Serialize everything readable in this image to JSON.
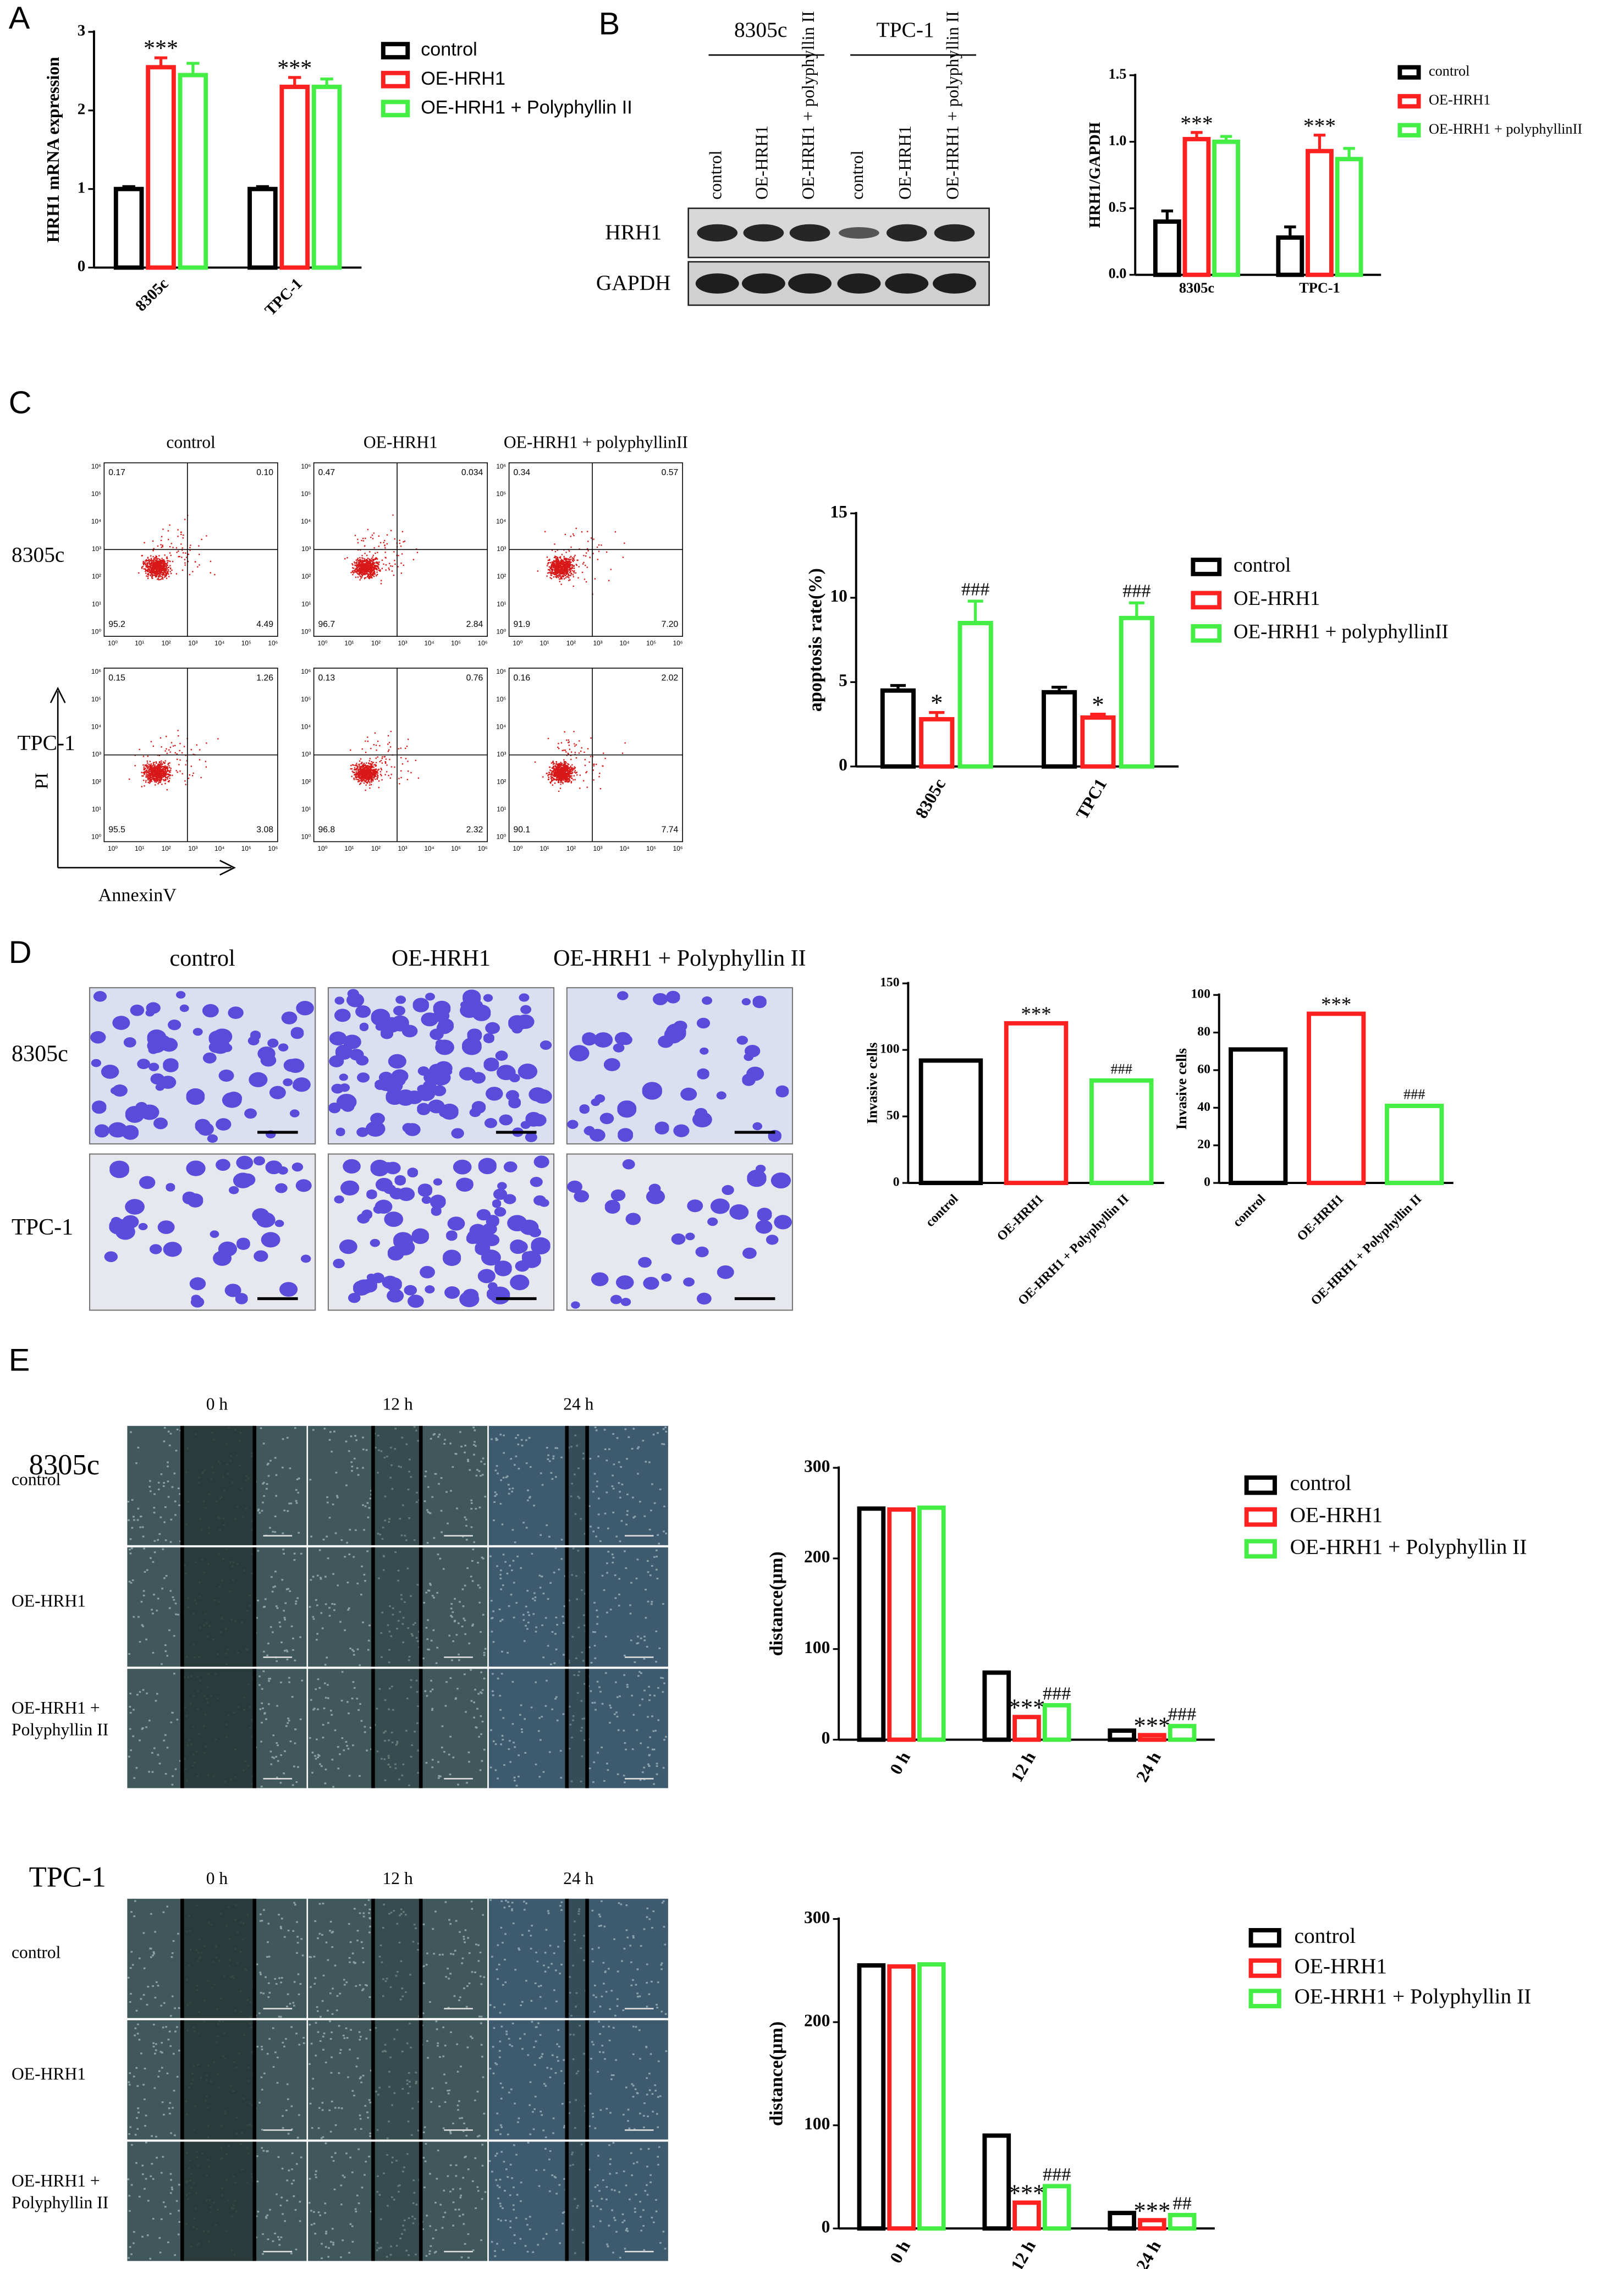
{
  "panels": [
    "A",
    "B",
    "C",
    "D",
    "E"
  ],
  "blot": {
    "cell_lines": [
      "8305c",
      "TPC-1"
    ],
    "lanes": [
      "control",
      "OE-HRH1",
      "OE-HRH1 + polyphyllin II",
      "control",
      "OE-HRH1",
      "OE-HRH1 + polyphyllin II"
    ],
    "proteins": [
      "HRH1",
      "GAPDH"
    ]
  },
  "flow": {
    "columns": [
      "control",
      "OE-HRH1",
      "OE-HRH1 + polyphyllinII"
    ],
    "rows": [
      "8305c",
      "TPC-1"
    ],
    "y_axis": "PI",
    "x_axis": "AnnexinV",
    "tick_labels": [
      "10⁰",
      "10¹",
      "10²",
      "10³",
      "10⁴",
      "10⁵",
      "10⁶"
    ],
    "quadrants": [
      [
        [
          "0.17",
          "0.10",
          "95.2",
          "4.49"
        ],
        [
          "0.47",
          "0.034",
          "96.7",
          "2.84"
        ],
        [
          "0.34",
          "0.57",
          "91.9",
          "7.20"
        ]
      ],
      [
        [
          "0.15",
          "1.26",
          "95.5",
          "3.08"
        ],
        [
          "0.13",
          "0.76",
          "96.8",
          "2.32"
        ],
        [
          "0.16",
          "2.02",
          "90.1",
          "7.74"
        ]
      ]
    ]
  },
  "invasion": {
    "columns": [
      "control",
      "OE-HRH1",
      "OE-HRH1 + Polyphyllin II"
    ],
    "rows": [
      "8305c",
      "TPC-1"
    ]
  },
  "wound": [
    {
      "cell_line": "8305c",
      "columns": [
        "0 h",
        "12 h",
        "24 h"
      ],
      "rows": [
        "control",
        "OE-HRH1",
        "OE-HRH1 + Polyphyllin II"
      ]
    },
    {
      "cell_line": "TPC-1",
      "columns": [
        "0 h",
        "12 h",
        "24 h"
      ],
      "rows": [
        "control",
        "OE-HRH1",
        "OE-HRH1 + Polyphyllin II"
      ]
    }
  ],
  "chart_data": [
    {
      "type": "bar",
      "ylabel": "HRH1 mRNA expression",
      "categories": [
        "8305c",
        "TPC-1"
      ],
      "series": [
        {
          "name": "control",
          "color": "#000000",
          "values": [
            1.0,
            1.0
          ],
          "errors": [
            0.03,
            0.03
          ],
          "significance": [
            null,
            null
          ]
        },
        {
          "name": "OE-HRH1",
          "color": "#ff2020",
          "values": [
            2.55,
            2.3
          ],
          "errors": [
            0.12,
            0.12
          ],
          "significance": [
            "***",
            "***"
          ]
        },
        {
          "name": "OE-HRH1 + Polyphyllin II",
          "color": "#44ee44",
          "values": [
            2.45,
            2.3
          ],
          "errors": [
            0.15,
            0.1
          ],
          "significance": [
            null,
            null
          ]
        }
      ],
      "ylim": [
        0,
        3
      ],
      "yticks": [
        0,
        1,
        2,
        3
      ]
    },
    {
      "type": "bar",
      "ylabel": "HRH1/GAPDH",
      "categories": [
        "8305c",
        "TPC-1"
      ],
      "series": [
        {
          "name": "control",
          "color": "#000000",
          "values": [
            0.4,
            0.28
          ],
          "errors": [
            0.08,
            0.08
          ],
          "significance": [
            null,
            null
          ]
        },
        {
          "name": "OE-HRH1",
          "color": "#ff2020",
          "values": [
            1.02,
            0.93
          ],
          "errors": [
            0.05,
            0.12
          ],
          "significance": [
            "***",
            "***"
          ]
        },
        {
          "name": "OE-HRH1 + polyphyllinII",
          "color": "#44ee44",
          "values": [
            1.0,
            0.87
          ],
          "errors": [
            0.04,
            0.08
          ],
          "significance": [
            null,
            null
          ]
        }
      ],
      "ylim": [
        0,
        1.5
      ],
      "yticks": [
        {
          "value": 0,
          "label": "0.0"
        },
        {
          "value": 0.5,
          "label": "0.5"
        },
        {
          "value": 1,
          "label": "1.0"
        },
        {
          "value": 1.5,
          "label": "1.5"
        }
      ]
    },
    {
      "type": "bar",
      "ylabel": "apoptosis rate(%)",
      "categories": [
        "8305c",
        "TPC1"
      ],
      "series": [
        {
          "name": "control",
          "color": "#000000",
          "values": [
            4.5,
            4.4
          ],
          "errors": [
            0.3,
            0.3
          ],
          "significance": [
            null,
            null
          ]
        },
        {
          "name": "OE-HRH1",
          "color": "#ff2020",
          "values": [
            2.8,
            2.9
          ],
          "errors": [
            0.4,
            0.2
          ],
          "significance": [
            "*",
            "*"
          ]
        },
        {
          "name": "OE-HRH1 + polyphyllinII",
          "color": "#44ee44",
          "values": [
            8.5,
            8.8
          ],
          "errors": [
            1.3,
            0.9
          ],
          "significance": [
            "###",
            "###"
          ]
        }
      ],
      "ylim": [
        0,
        15
      ],
      "yticks": [
        0,
        5,
        10,
        15
      ]
    },
    {
      "type": "bar",
      "ylabel": "Invasive cells",
      "categories": [
        "control",
        "OE-HRH1",
        "OE-HRH1 + Polyphyllin II"
      ],
      "values": [
        92,
        120,
        77
      ],
      "colors": [
        "#000000",
        "#ff2020",
        "#44ee44"
      ],
      "significance": [
        null,
        "***",
        "###"
      ],
      "ylim": [
        0,
        150
      ],
      "yticks": [
        0,
        50,
        100,
        150
      ]
    },
    {
      "type": "bar",
      "ylabel": "Invasive cells",
      "categories": [
        "control",
        "OE-HRH1",
        "OE-HRH1 + Polyphyllin II"
      ],
      "values": [
        71,
        90,
        41
      ],
      "colors": [
        "#000000",
        "#ff2020",
        "#44ee44"
      ],
      "significance": [
        null,
        "***",
        "###"
      ],
      "ylim": [
        0,
        100
      ],
      "yticks": [
        0,
        20,
        40,
        60,
        80,
        100
      ]
    },
    {
      "type": "bar",
      "ylabel": "distance(μm)",
      "categories": [
        "0 h",
        "12 h",
        "24 h"
      ],
      "series": [
        {
          "name": "control",
          "color": "#000000",
          "values": [
            255,
            74,
            10
          ],
          "significance": [
            null,
            null,
            null
          ]
        },
        {
          "name": "OE-HRH1",
          "color": "#ff2020",
          "values": [
            254,
            25,
            5
          ],
          "significance": [
            null,
            "***",
            "***"
          ]
        },
        {
          "name": "OE-HRH1 + Polyphyllin II",
          "color": "#44ee44",
          "values": [
            256,
            38,
            15
          ],
          "significance": [
            null,
            "###",
            "###"
          ]
        }
      ],
      "ylim": [
        0,
        300
      ],
      "yticks": [
        0,
        100,
        200,
        300
      ]
    },
    {
      "type": "bar",
      "ylabel": "distance(μm)",
      "categories": [
        "0 h",
        "12 h",
        "24 h"
      ],
      "series": [
        {
          "name": "control",
          "color": "#000000",
          "values": [
            255,
            90,
            15
          ],
          "significance": [
            null,
            null,
            null
          ]
        },
        {
          "name": "OE-HRH1",
          "color": "#ff2020",
          "values": [
            254,
            25,
            8
          ],
          "significance": [
            null,
            "***",
            "***"
          ]
        },
        {
          "name": "OE-HRH1 + Polyphyllin II",
          "color": "#44ee44",
          "values": [
            256,
            41,
            13
          ],
          "significance": [
            null,
            "###",
            "##"
          ]
        }
      ],
      "ylim": [
        0,
        300
      ],
      "yticks": [
        0,
        100,
        200,
        300
      ]
    }
  ]
}
